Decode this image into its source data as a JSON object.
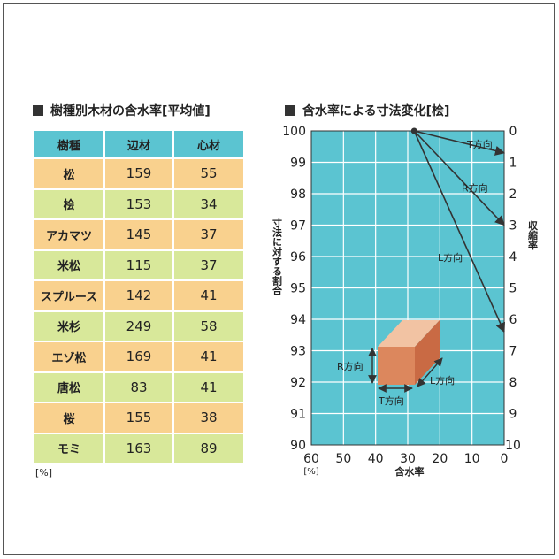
{
  "table": {
    "title": "樹種別木材の含水率[平均値]",
    "headers": [
      "樹種",
      "辺材",
      "心材"
    ],
    "rows": [
      {
        "name": "松",
        "sap": "159",
        "heart": "55"
      },
      {
        "name": "桧",
        "sap": "153",
        "heart": "34"
      },
      {
        "name": "アカマツ",
        "sap": "145",
        "heart": "37"
      },
      {
        "name": "米松",
        "sap": "115",
        "heart": "37"
      },
      {
        "name": "スプルース",
        "sap": "142",
        "heart": "41"
      },
      {
        "name": "米杉",
        "sap": "249",
        "heart": "58"
      },
      {
        "name": "エゾ松",
        "sap": "169",
        "heart": "41"
      },
      {
        "name": "唐松",
        "sap": "83",
        "heart": "41"
      },
      {
        "name": "桜",
        "sap": "155",
        "heart": "38"
      },
      {
        "name": "モミ",
        "sap": "163",
        "heart": "89"
      }
    ],
    "unit": "[%]",
    "colors": {
      "header": "#5bc4d1",
      "odd": "#f9d18e",
      "even": "#d8e89a"
    }
  },
  "chart_data": {
    "type": "line",
    "title": "含水率による寸法変化[桧]",
    "xlabel": "含水率",
    "x_unit": "[%]",
    "ylabel_left": "寸法に対する割合",
    "ylabel_right": "収縮率",
    "x_ticks": [
      60,
      50,
      40,
      30,
      20,
      10,
      0
    ],
    "y_left_ticks": [
      100,
      99,
      98,
      97,
      96,
      95,
      94,
      93,
      92,
      91,
      90
    ],
    "y_right_ticks": [
      0,
      1,
      2,
      3,
      4,
      5,
      6,
      7,
      8,
      9,
      10
    ],
    "xlim": [
      60,
      0
    ],
    "ylim": [
      90,
      100
    ],
    "grid": true,
    "background_color": "#5bc4d1",
    "series": [
      {
        "name": "T方向",
        "points": [
          [
            28,
            100
          ],
          [
            0,
            99.3
          ]
        ]
      },
      {
        "name": "R方向",
        "points": [
          [
            28,
            100
          ],
          [
            0,
            97
          ]
        ]
      },
      {
        "name": "L方向",
        "points": [
          [
            28,
            100
          ],
          [
            0,
            93.6
          ]
        ]
      }
    ],
    "block_labels": {
      "r": "R方向",
      "t": "T方向",
      "l": "L方向"
    }
  }
}
